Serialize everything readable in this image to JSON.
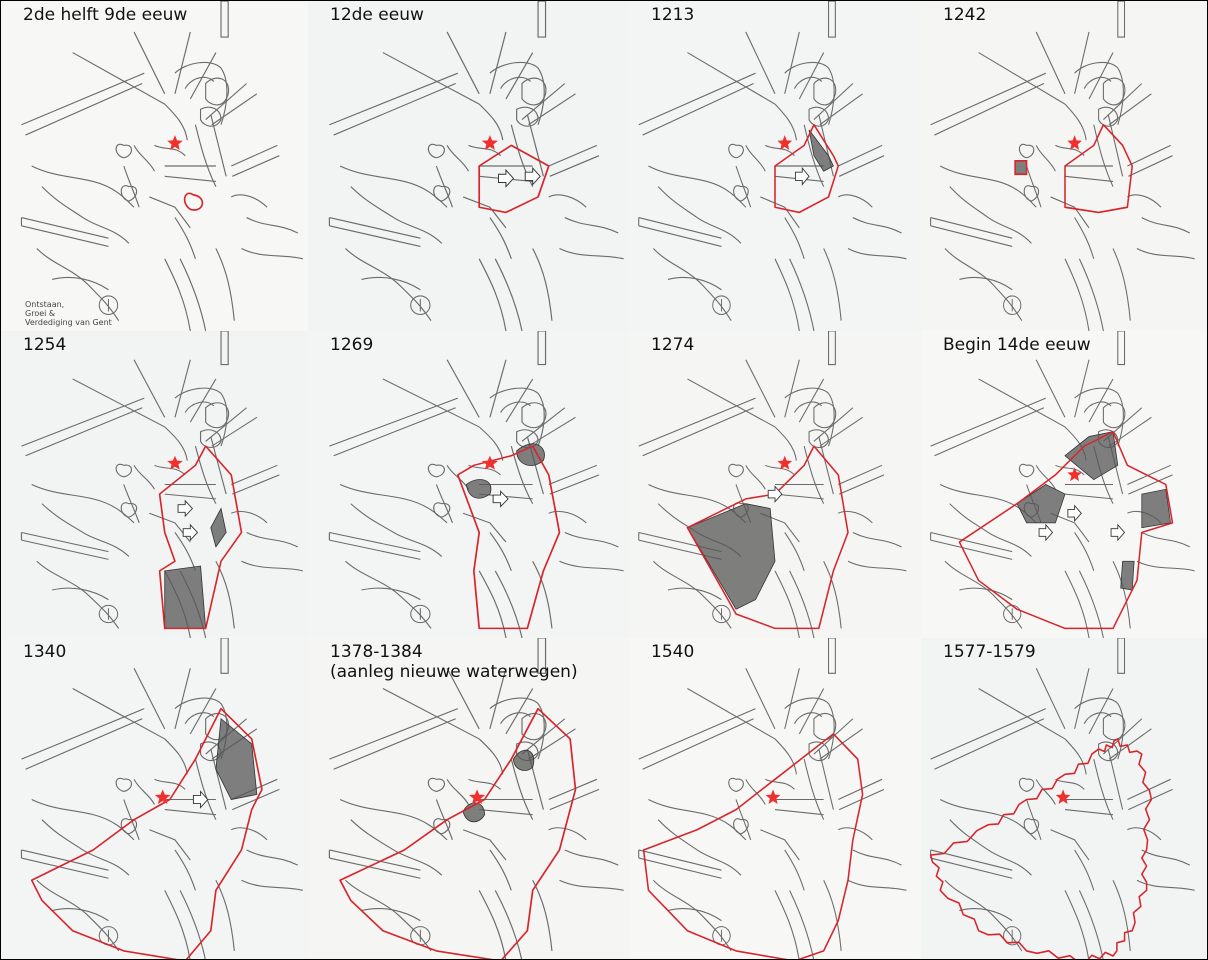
{
  "panels": [
    {
      "id": "p1",
      "label": "2de helft 9de eeuw",
      "stage": 1
    },
    {
      "id": "p2",
      "label": "12de eeuw",
      "stage": 2
    },
    {
      "id": "p3",
      "label": "1213",
      "stage": 3
    },
    {
      "id": "p4",
      "label": "1242",
      "stage": 4
    },
    {
      "id": "p5",
      "label": "1254",
      "stage": 5
    },
    {
      "id": "p6",
      "label": "1269",
      "stage": 6
    },
    {
      "id": "p7",
      "label": "1274",
      "stage": 7
    },
    {
      "id": "p8",
      "label": "Begin 14de eeuw",
      "stage": 8
    },
    {
      "id": "p9",
      "label": "1340",
      "stage": 9
    },
    {
      "id": "p10",
      "label": "1378-1384\n(aanleg nieuwe waterwegen)",
      "stage": 10
    },
    {
      "id": "p11",
      "label": "1540",
      "stage": 11
    },
    {
      "id": "p12",
      "label": "1577-1579",
      "stage": 12
    }
  ],
  "legend": {
    "title_lines": [
      "Ontstaan,",
      "Groei &",
      "Verdediging   van   Gent"
    ]
  },
  "colors": {
    "boundary": "#d8252c",
    "expansion_fill": "#555555",
    "map_lines": "#6b6b6b",
    "marker": "#f0302c",
    "paper": "#f6f7f5"
  },
  "icons": {
    "marker": "star-icon",
    "arrow": "arrow-icon"
  }
}
